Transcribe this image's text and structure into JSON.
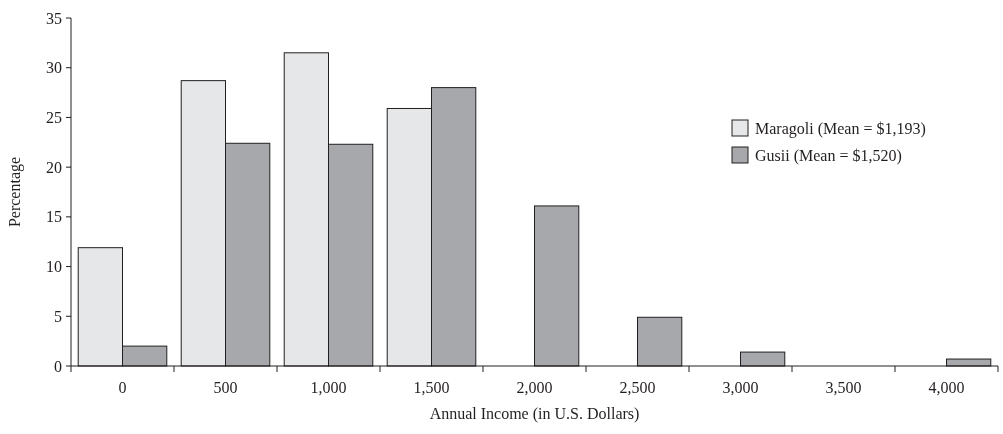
{
  "chart_data": {
    "type": "bar",
    "xlabel": "Annual Income (in U.S. Dollars)",
    "ylabel": "Percentage",
    "categories": [
      "0",
      "500",
      "1,000",
      "1,500",
      "2,000",
      "2,500",
      "3,000",
      "3,500",
      "4,000"
    ],
    "series": [
      {
        "name": "Maragoli (Mean = $1,193)",
        "color": "#e6e7e9",
        "values": [
          11.9,
          28.7,
          31.5,
          25.9,
          null,
          null,
          null,
          null,
          null
        ]
      },
      {
        "name": "Gusii (Mean = $1,520)",
        "color": "#a7a8ab",
        "values": [
          2.0,
          22.4,
          22.3,
          28.0,
          16.1,
          4.9,
          1.4,
          null,
          0.7
        ]
      }
    ],
    "ylim": [
      0,
      35
    ],
    "yticks": [
      0,
      5,
      10,
      15,
      20,
      25,
      30,
      35
    ],
    "grid": false,
    "legend": "right"
  }
}
